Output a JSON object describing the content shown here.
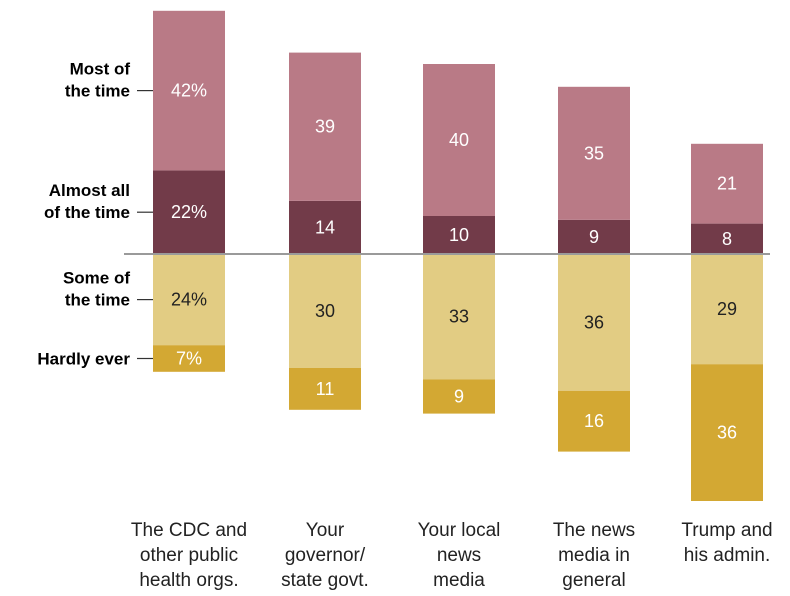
{
  "chart_data": {
    "type": "bar",
    "stacked": true,
    "diverging": true,
    "categories": [
      [
        "The CDC and",
        "other public",
        "health orgs."
      ],
      [
        "Your",
        "governor/",
        "state govt."
      ],
      [
        "Your local",
        "news",
        "media"
      ],
      [
        "The news",
        "media in",
        "general"
      ],
      [
        "Trump and",
        "his admin."
      ]
    ],
    "series": [
      {
        "name": "Almost all of the time",
        "legend_lines": [
          "Almost all",
          "of the time"
        ],
        "direction": "up",
        "color": "#723b49",
        "text_color": "#ffffff",
        "values": [
          22,
          14,
          10,
          9,
          8
        ]
      },
      {
        "name": "Most of the time",
        "legend_lines": [
          "Most of",
          "the time"
        ],
        "direction": "up",
        "color": "#b97a86",
        "text_color": "#ffffff",
        "values": [
          42,
          39,
          40,
          35,
          21
        ]
      },
      {
        "name": "Some of the time",
        "legend_lines": [
          "Some of",
          "the time"
        ],
        "direction": "down",
        "color": "#e2cc83",
        "text_color": "#222222",
        "values": [
          24,
          30,
          33,
          36,
          29
        ]
      },
      {
        "name": "Hardly ever",
        "legend_lines": [
          "Hardly ever"
        ],
        "direction": "down",
        "color": "#d3a833",
        "text_color": "#ffffff",
        "values": [
          7,
          11,
          9,
          16,
          36
        ]
      }
    ],
    "first_bar_suffix": "%",
    "baseline_color": "#9a9a9a"
  }
}
